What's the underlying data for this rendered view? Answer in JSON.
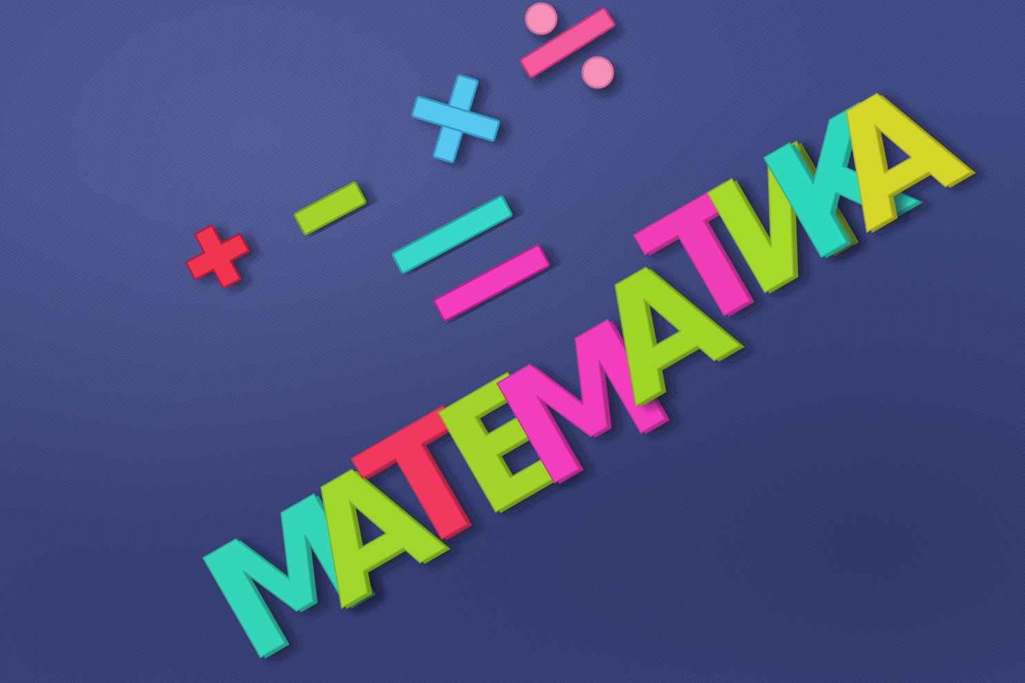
{
  "word": {
    "letters": [
      "М",
      "А",
      "Т",
      "Е",
      "М",
      "А",
      "Т",
      "И",
      "К",
      "А"
    ],
    "colors": [
      "#35d6b8",
      "#9fd82a",
      "#f2375e",
      "#a2d42b",
      "#f23cbf",
      "#9ed528",
      "#f13eb8",
      "#a5d92b",
      "#2fd8bd",
      "#d4d62a"
    ]
  },
  "symbols": [
    {
      "name": "plus-symbol",
      "glyph": "+",
      "color": "#f0344f"
    },
    {
      "name": "minus-symbol",
      "glyph": "−",
      "color": "#a3d42a"
    },
    {
      "name": "times-symbol",
      "glyph": "×",
      "color": "#56c7f0"
    },
    {
      "name": "divide-symbol",
      "glyph": "÷",
      "color": "#38d8cf"
    },
    {
      "name": "percent-symbol",
      "glyph": "%",
      "color": "#f25b9f"
    }
  ],
  "background": {
    "material": "denim",
    "color": "#3f4a86"
  }
}
